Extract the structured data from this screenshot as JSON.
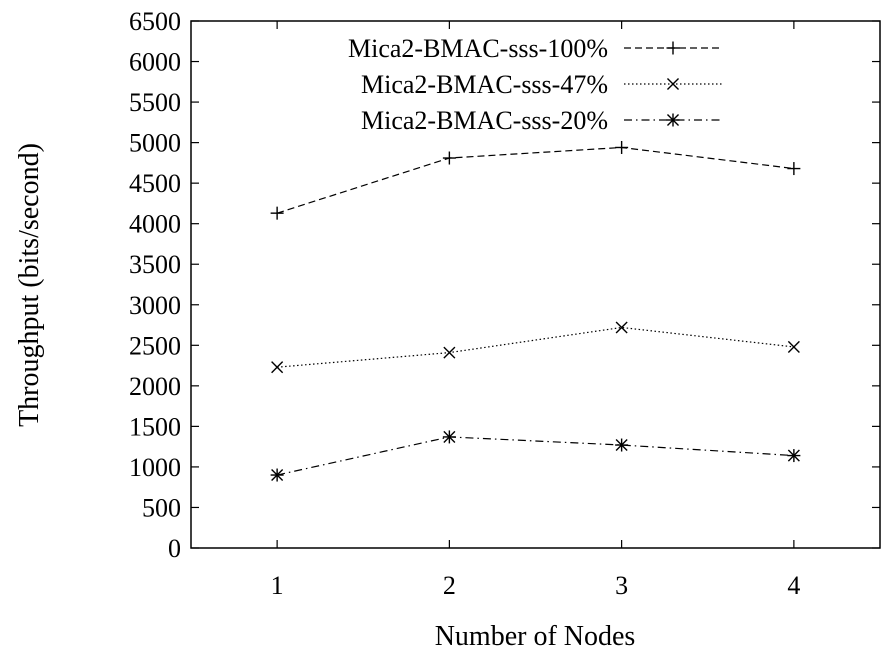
{
  "chart_data": {
    "type": "line",
    "title": "",
    "xlabel": "Number of Nodes",
    "ylabel": "Throughput (bits/second)",
    "x": [
      1,
      2,
      3,
      4
    ],
    "xlim": [
      0.5,
      4.5
    ],
    "ylim": [
      0,
      6500
    ],
    "xticks": [
      "1",
      "2",
      "3",
      "4"
    ],
    "yticks": [
      "0",
      "500",
      "1000",
      "1500",
      "2000",
      "2500",
      "3000",
      "3500",
      "4000",
      "4500",
      "5000",
      "5500",
      "6000",
      "6500"
    ],
    "grid": false,
    "legend_position": "top-right",
    "series": [
      {
        "name": "Mica2-BMAC-sss-100%",
        "marker": "plus",
        "dash": "dashed",
        "values": [
          4130,
          4810,
          4940,
          4680
        ]
      },
      {
        "name": "Mica2-BMAC-sss-47%",
        "marker": "cross",
        "dash": "dotted",
        "values": [
          2230,
          2410,
          2720,
          2480
        ]
      },
      {
        "name": "Mica2-BMAC-sss-20%",
        "marker": "star",
        "dash": "dashdot",
        "values": [
          900,
          1370,
          1270,
          1140
        ]
      }
    ]
  }
}
